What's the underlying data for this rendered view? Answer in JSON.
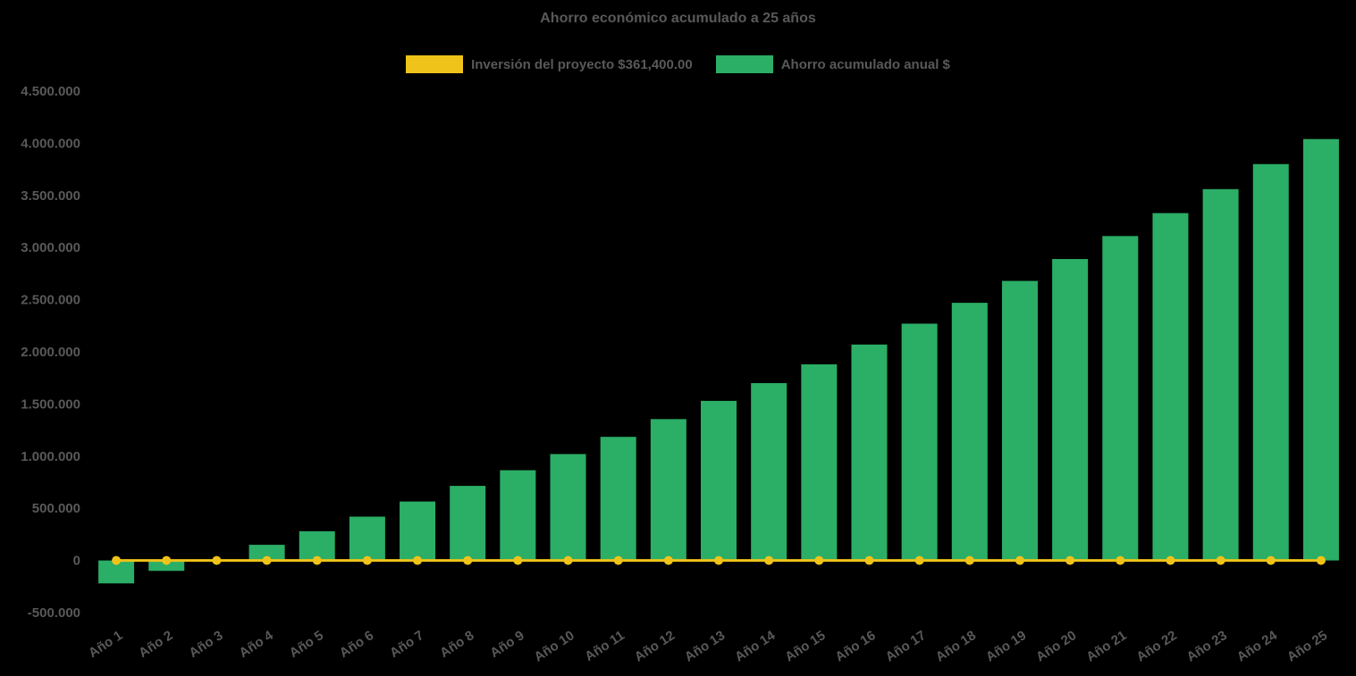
{
  "chart_data": {
    "type": "bar",
    "title": "Ahorro económico acumulado a 25 años",
    "categories": [
      "Año 1",
      "Año 2",
      "Año 3",
      "Año 4",
      "Año 5",
      "Año 6",
      "Año 7",
      "Año 8",
      "Año 9",
      "Año 10",
      "Año 11",
      "Año 12",
      "Año 13",
      "Año 14",
      "Año 15",
      "Año 16",
      "Año 17",
      "Año 18",
      "Año 19",
      "Año 20",
      "Año 21",
      "Año 22",
      "Año 23",
      "Año 24",
      "Año 25"
    ],
    "series": [
      {
        "name": "Inversión del proyecto $361,400.00",
        "type": "line",
        "color": "#EFC319",
        "values": [
          0,
          0,
          0,
          0,
          0,
          0,
          0,
          0,
          0,
          0,
          0,
          0,
          0,
          0,
          0,
          0,
          0,
          0,
          0,
          0,
          0,
          0,
          0,
          0,
          0
        ]
      },
      {
        "name": "Ahorro acumulado anual $",
        "type": "bar",
        "color": "#2BAE66",
        "values": [
          -220000,
          -100000,
          10000,
          150000,
          280000,
          420000,
          565000,
          715000,
          865000,
          1020000,
          1185000,
          1355000,
          1530000,
          1700000,
          1880000,
          2070000,
          2270000,
          2470000,
          2680000,
          2890000,
          3110000,
          3330000,
          3560000,
          3800000,
          4040000
        ]
      }
    ],
    "ylim": [
      -500000,
      4500000
    ],
    "ytick_step": 500000,
    "ytick_labels": [
      "-500.000",
      "0",
      "500.000",
      "1.000.000",
      "1.500.000",
      "2.000.000",
      "2.500.000",
      "3.000.000",
      "3.500.000",
      "4.000.000",
      "4.500.000"
    ],
    "xlabel": "",
    "ylabel": "",
    "grid": false,
    "legend_position": "top",
    "x_label_rotation_deg": -33
  },
  "colors": {
    "background": "#000000",
    "text": "#595959",
    "investment_line": "#EFC319",
    "savings_bar": "#2BAE66"
  }
}
